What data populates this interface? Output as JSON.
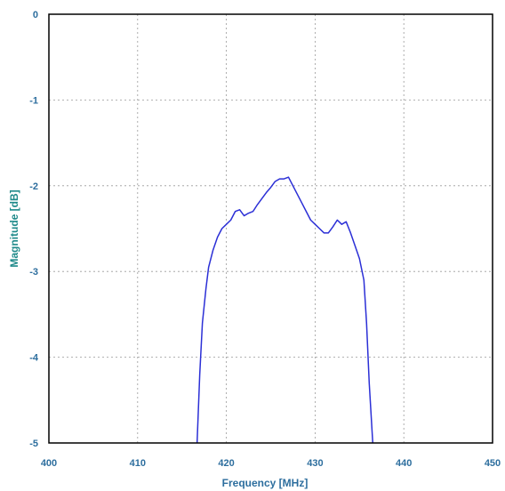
{
  "chart_data": {
    "type": "line",
    "title": "",
    "xlabel": "Frequency [MHz]",
    "ylabel": "Magnitude [dB]",
    "xlim": [
      400,
      450
    ],
    "ylim": [
      -5,
      0
    ],
    "x_ticks": [
      "400",
      "410",
      "420",
      "430",
      "440",
      "450"
    ],
    "y_ticks": [
      "0",
      "-1",
      "-2",
      "-3",
      "-4",
      "-5"
    ],
    "grid": true,
    "series": [
      {
        "color": "#2b2fd6",
        "x": [
          416.7,
          417.0,
          417.3,
          417.7,
          418.0,
          418.5,
          419.0,
          419.5,
          420.0,
          420.5,
          421.0,
          421.5,
          422.0,
          422.5,
          423.0,
          423.5,
          424.0,
          424.5,
          425.0,
          425.5,
          426.0,
          426.5,
          427.0,
          427.5,
          428.0,
          428.5,
          429.0,
          429.5,
          430.0,
          430.5,
          431.0,
          431.5,
          432.0,
          432.5,
          433.0,
          433.5,
          434.0,
          434.5,
          435.0,
          435.5,
          435.8,
          436.1,
          436.5
        ],
        "y": [
          -5.0,
          -4.2,
          -3.6,
          -3.2,
          -2.95,
          -2.75,
          -2.6,
          -2.5,
          -2.45,
          -2.4,
          -2.3,
          -2.28,
          -2.35,
          -2.32,
          -2.3,
          -2.22,
          -2.15,
          -2.08,
          -2.02,
          -1.95,
          -1.92,
          -1.92,
          -1.9,
          -2.0,
          -2.1,
          -2.2,
          -2.3,
          -2.4,
          -2.45,
          -2.5,
          -2.55,
          -2.55,
          -2.48,
          -2.4,
          -2.45,
          -2.42,
          -2.55,
          -2.7,
          -2.85,
          -3.1,
          -3.6,
          -4.3,
          -5.0
        ]
      }
    ]
  }
}
